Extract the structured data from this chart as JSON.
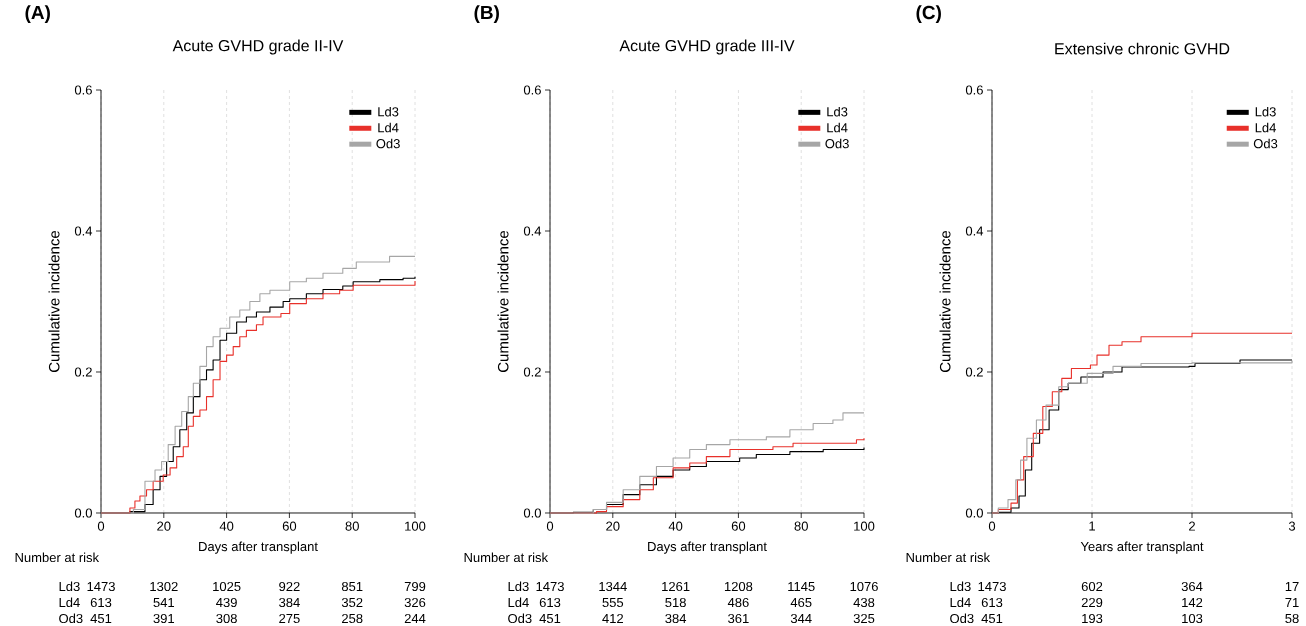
{
  "chart_data": [
    {
      "type": "step",
      "title": "Acute GVHD grade II-IV",
      "xlabel": "Days after transplant",
      "ylabel": "Cumulative incidence",
      "xlim": [
        0,
        100
      ],
      "xticks": [
        0,
        20,
        40,
        60,
        80,
        100
      ],
      "ylim": [
        0,
        0.6
      ],
      "yticks": [
        {
          "value": 0,
          "label": "0.0"
        },
        {
          "value": 0.2,
          "label": "0.2"
        },
        {
          "value": 0.4,
          "label": "0.4"
        },
        {
          "value": 0.6,
          "label": "0.6"
        }
      ],
      "grid": "x",
      "legend": "top right",
      "series": [
        {
          "name": "Ld3",
          "color": "#000000",
          "x": [
            0,
            9.2,
            14,
            16.6,
            18.8,
            20.9,
            23,
            25.1,
            27.3,
            29.4,
            31.5,
            33.6,
            35.7,
            37.9,
            40,
            43.2,
            46.3,
            49.5,
            53.8,
            58,
            60.1,
            65.4,
            70.7,
            77,
            80.3,
            88.8,
            96.2,
            100
          ],
          "values": [
            0,
            0.002,
            0.012,
            0.033,
            0.052,
            0.073,
            0.094,
            0.118,
            0.142,
            0.165,
            0.189,
            0.203,
            0.217,
            0.245,
            0.255,
            0.271,
            0.278,
            0.285,
            0.292,
            0.3,
            0.304,
            0.311,
            0.317,
            0.322,
            0.328,
            0.331,
            0.333,
            0.335
          ]
        },
        {
          "name": "Ld4",
          "color": "#e8302a",
          "x": [
            0,
            9.2,
            10.8,
            12.4,
            14.5,
            16.6,
            19.8,
            22,
            24.1,
            26.2,
            27.8,
            29.4,
            31.5,
            33.6,
            35.7,
            37.9,
            40,
            42.1,
            44.2,
            46.3,
            49.5,
            51.6,
            57.3,
            60.1,
            65.4,
            70.7,
            76,
            80.3,
            100
          ],
          "values": [
            0,
            0.007,
            0.017,
            0.024,
            0.033,
            0.045,
            0.054,
            0.064,
            0.08,
            0.094,
            0.123,
            0.137,
            0.146,
            0.165,
            0.189,
            0.215,
            0.224,
            0.236,
            0.25,
            0.259,
            0.267,
            0.278,
            0.283,
            0.297,
            0.304,
            0.311,
            0.316,
            0.323,
            0.329
          ]
        },
        {
          "name": "Od3",
          "color": "#a6a6a6",
          "x": [
            0,
            10.3,
            14,
            17.2,
            19.3,
            21.4,
            23.6,
            25.7,
            27.8,
            29.4,
            31.5,
            33.6,
            35.7,
            37.9,
            41,
            44.2,
            47.4,
            50.6,
            53.8,
            60.1,
            65.4,
            70.7,
            77,
            81.3,
            91.9,
            100
          ],
          "values": [
            0,
            0.005,
            0.045,
            0.061,
            0.073,
            0.097,
            0.123,
            0.144,
            0.165,
            0.184,
            0.208,
            0.236,
            0.25,
            0.262,
            0.278,
            0.288,
            0.3,
            0.311,
            0.316,
            0.328,
            0.333,
            0.34,
            0.347,
            0.356,
            0.364,
            0.364
          ]
        }
      ],
      "annotations": [
        "(A)",
        "Number at risk",
        "Ld3",
        "1473",
        "1302",
        "1025",
        "922",
        "851",
        "799",
        "Ld4",
        "613",
        "541",
        "439",
        "384",
        "352",
        "326",
        "Od3",
        "451",
        "391",
        "308",
        "275",
        "258",
        "244"
      ]
    },
    {
      "type": "step",
      "title": "Acute GVHD grade III-IV",
      "xlabel": "Days after transplant",
      "ylabel": "Cumulative incidence",
      "xlim": [
        0,
        100
      ],
      "xticks": [
        0,
        20,
        40,
        60,
        80,
        100
      ],
      "ylim": [
        0,
        0.6
      ],
      "yticks": [
        {
          "value": 0,
          "label": "0.0"
        },
        {
          "value": 0.2,
          "label": "0.2"
        },
        {
          "value": 0.4,
          "label": "0.4"
        },
        {
          "value": 0.6,
          "label": "0.6"
        }
      ],
      "grid": "x",
      "legend": "top right",
      "series": [
        {
          "name": "Ld3",
          "color": "#000000",
          "x": [
            0,
            7.4,
            13.8,
            18,
            23.3,
            28.6,
            33.9,
            39.2,
            44.5,
            49.8,
            60.4,
            65.7,
            76.4,
            87,
            100
          ],
          "values": [
            0,
            0.001,
            0.005,
            0.012,
            0.026,
            0.04,
            0.052,
            0.061,
            0.066,
            0.073,
            0.078,
            0.083,
            0.087,
            0.09,
            0.093
          ]
        },
        {
          "name": "Ld4",
          "color": "#e8302a",
          "x": [
            0,
            14.8,
            18,
            23.3,
            28.6,
            32.9,
            39.2,
            44.5,
            49.8,
            57.3,
            71,
            77.4,
            97.6,
            100
          ],
          "values": [
            0,
            0.002,
            0.009,
            0.019,
            0.033,
            0.05,
            0.064,
            0.071,
            0.08,
            0.09,
            0.094,
            0.099,
            0.104,
            0.106
          ]
        },
        {
          "name": "Od3",
          "color": "#a6a6a6",
          "x": [
            0,
            13.8,
            18,
            23.3,
            28.6,
            33.9,
            39.2,
            44.5,
            49.8,
            57.3,
            68.9,
            76.4,
            83.8,
            90.1,
            93.3,
            100
          ],
          "values": [
            0,
            0.005,
            0.015,
            0.033,
            0.052,
            0.066,
            0.078,
            0.09,
            0.097,
            0.104,
            0.108,
            0.118,
            0.127,
            0.132,
            0.142,
            0.142
          ]
        }
      ],
      "annotations": [
        "(B)",
        "Number at risk",
        "Ld3",
        "1473",
        "1344",
        "1261",
        "1208",
        "1145",
        "1076",
        "Ld4",
        "613",
        "555",
        "518",
        "486",
        "465",
        "438",
        "Od3",
        "451",
        "412",
        "384",
        "361",
        "344",
        "325"
      ]
    },
    {
      "type": "step",
      "title": "Extensive chronic GVHD",
      "xlabel": "Years after transplant",
      "ylabel": "Cumulative incidence",
      "xlim": [
        0,
        3
      ],
      "xticks": [
        0,
        1,
        2,
        3
      ],
      "ylim": [
        0,
        0.6
      ],
      "yticks": [
        {
          "value": 0,
          "label": "0.0"
        },
        {
          "value": 0.2,
          "label": "0.2"
        },
        {
          "value": 0.4,
          "label": "0.4"
        },
        {
          "value": 0.6,
          "label": "0.6"
        }
      ],
      "grid": "x",
      "legend": "top right",
      "series": [
        {
          "name": "Ld3",
          "color": "#000000",
          "x": [
            0,
            0.063,
            0.19,
            0.27,
            0.333,
            0.397,
            0.476,
            0.571,
            0.667,
            0.762,
            0.889,
            1.11,
            1.3,
            1.97,
            2.03,
            2.48,
            3
          ],
          "values": [
            0,
            0.001,
            0.007,
            0.024,
            0.061,
            0.099,
            0.118,
            0.146,
            0.175,
            0.184,
            0.193,
            0.2,
            0.207,
            0.208,
            0.212,
            0.217,
            0.217
          ]
        },
        {
          "name": "Ld4",
          "color": "#e8302a",
          "x": [
            0,
            0.063,
            0.19,
            0.254,
            0.317,
            0.413,
            0.508,
            0.603,
            0.698,
            0.794,
            0.984,
            1.05,
            1.17,
            1.3,
            1.49,
            2.0,
            3
          ],
          "values": [
            0,
            0.005,
            0.014,
            0.047,
            0.08,
            0.113,
            0.151,
            0.172,
            0.191,
            0.205,
            0.21,
            0.224,
            0.238,
            0.243,
            0.25,
            0.255,
            0.255
          ]
        },
        {
          "name": "Od3",
          "color": "#a6a6a6",
          "x": [
            0,
            0.063,
            0.16,
            0.238,
            0.286,
            0.349,
            0.444,
            0.54,
            0.667,
            0.762,
            0.952,
            1.21,
            1.49,
            2.0,
            3
          ],
          "values": [
            0,
            0.007,
            0.019,
            0.047,
            0.075,
            0.106,
            0.132,
            0.153,
            0.179,
            0.184,
            0.198,
            0.208,
            0.212,
            0.213,
            0.216
          ]
        }
      ],
      "annotations": [
        "(C)",
        "Number at risk",
        "Ld3",
        "1473",
        "602",
        "364",
        "17",
        "Ld4",
        "613",
        "229",
        "142",
        "71",
        "Od3",
        "451",
        "193",
        "103",
        "58"
      ]
    }
  ]
}
